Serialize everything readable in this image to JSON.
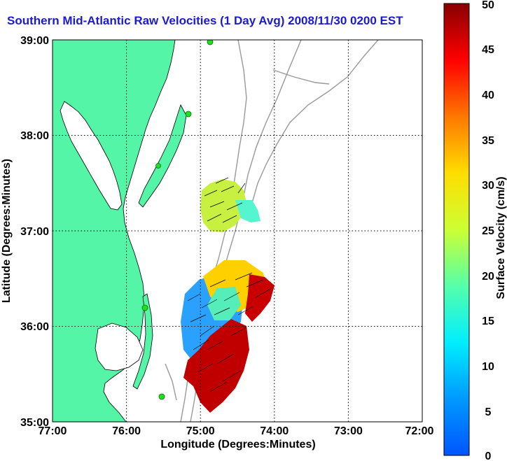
{
  "title": "Southern Mid-Atlantic Raw Velocities (1 Day Avg) 2008/11/30 0200 EST",
  "map": {
    "x_label": "Longitude (Degrees:Minutes)",
    "y_label": "Latitude (Degrees:Minutes)",
    "x_ticks": [
      "77:00",
      "76:00",
      "75:00",
      "74:00",
      "73:00",
      "72:00"
    ],
    "y_ticks": [
      "39:00",
      "38:00",
      "37:00",
      "36:00",
      "35:00"
    ],
    "lon_range": [
      -77,
      -72
    ],
    "lat_range": [
      35,
      39
    ],
    "land_color": "#55f5a8",
    "coast_color": "#000000",
    "bathymetry_color": "#999999",
    "station_color": "#22dd22"
  },
  "colorbar": {
    "label": "Surface Velocity (cm/s)",
    "ticks": [
      "50",
      "45",
      "40",
      "35",
      "30",
      "25",
      "20",
      "15",
      "10",
      "5",
      "0"
    ],
    "range": [
      0,
      50
    ]
  }
}
